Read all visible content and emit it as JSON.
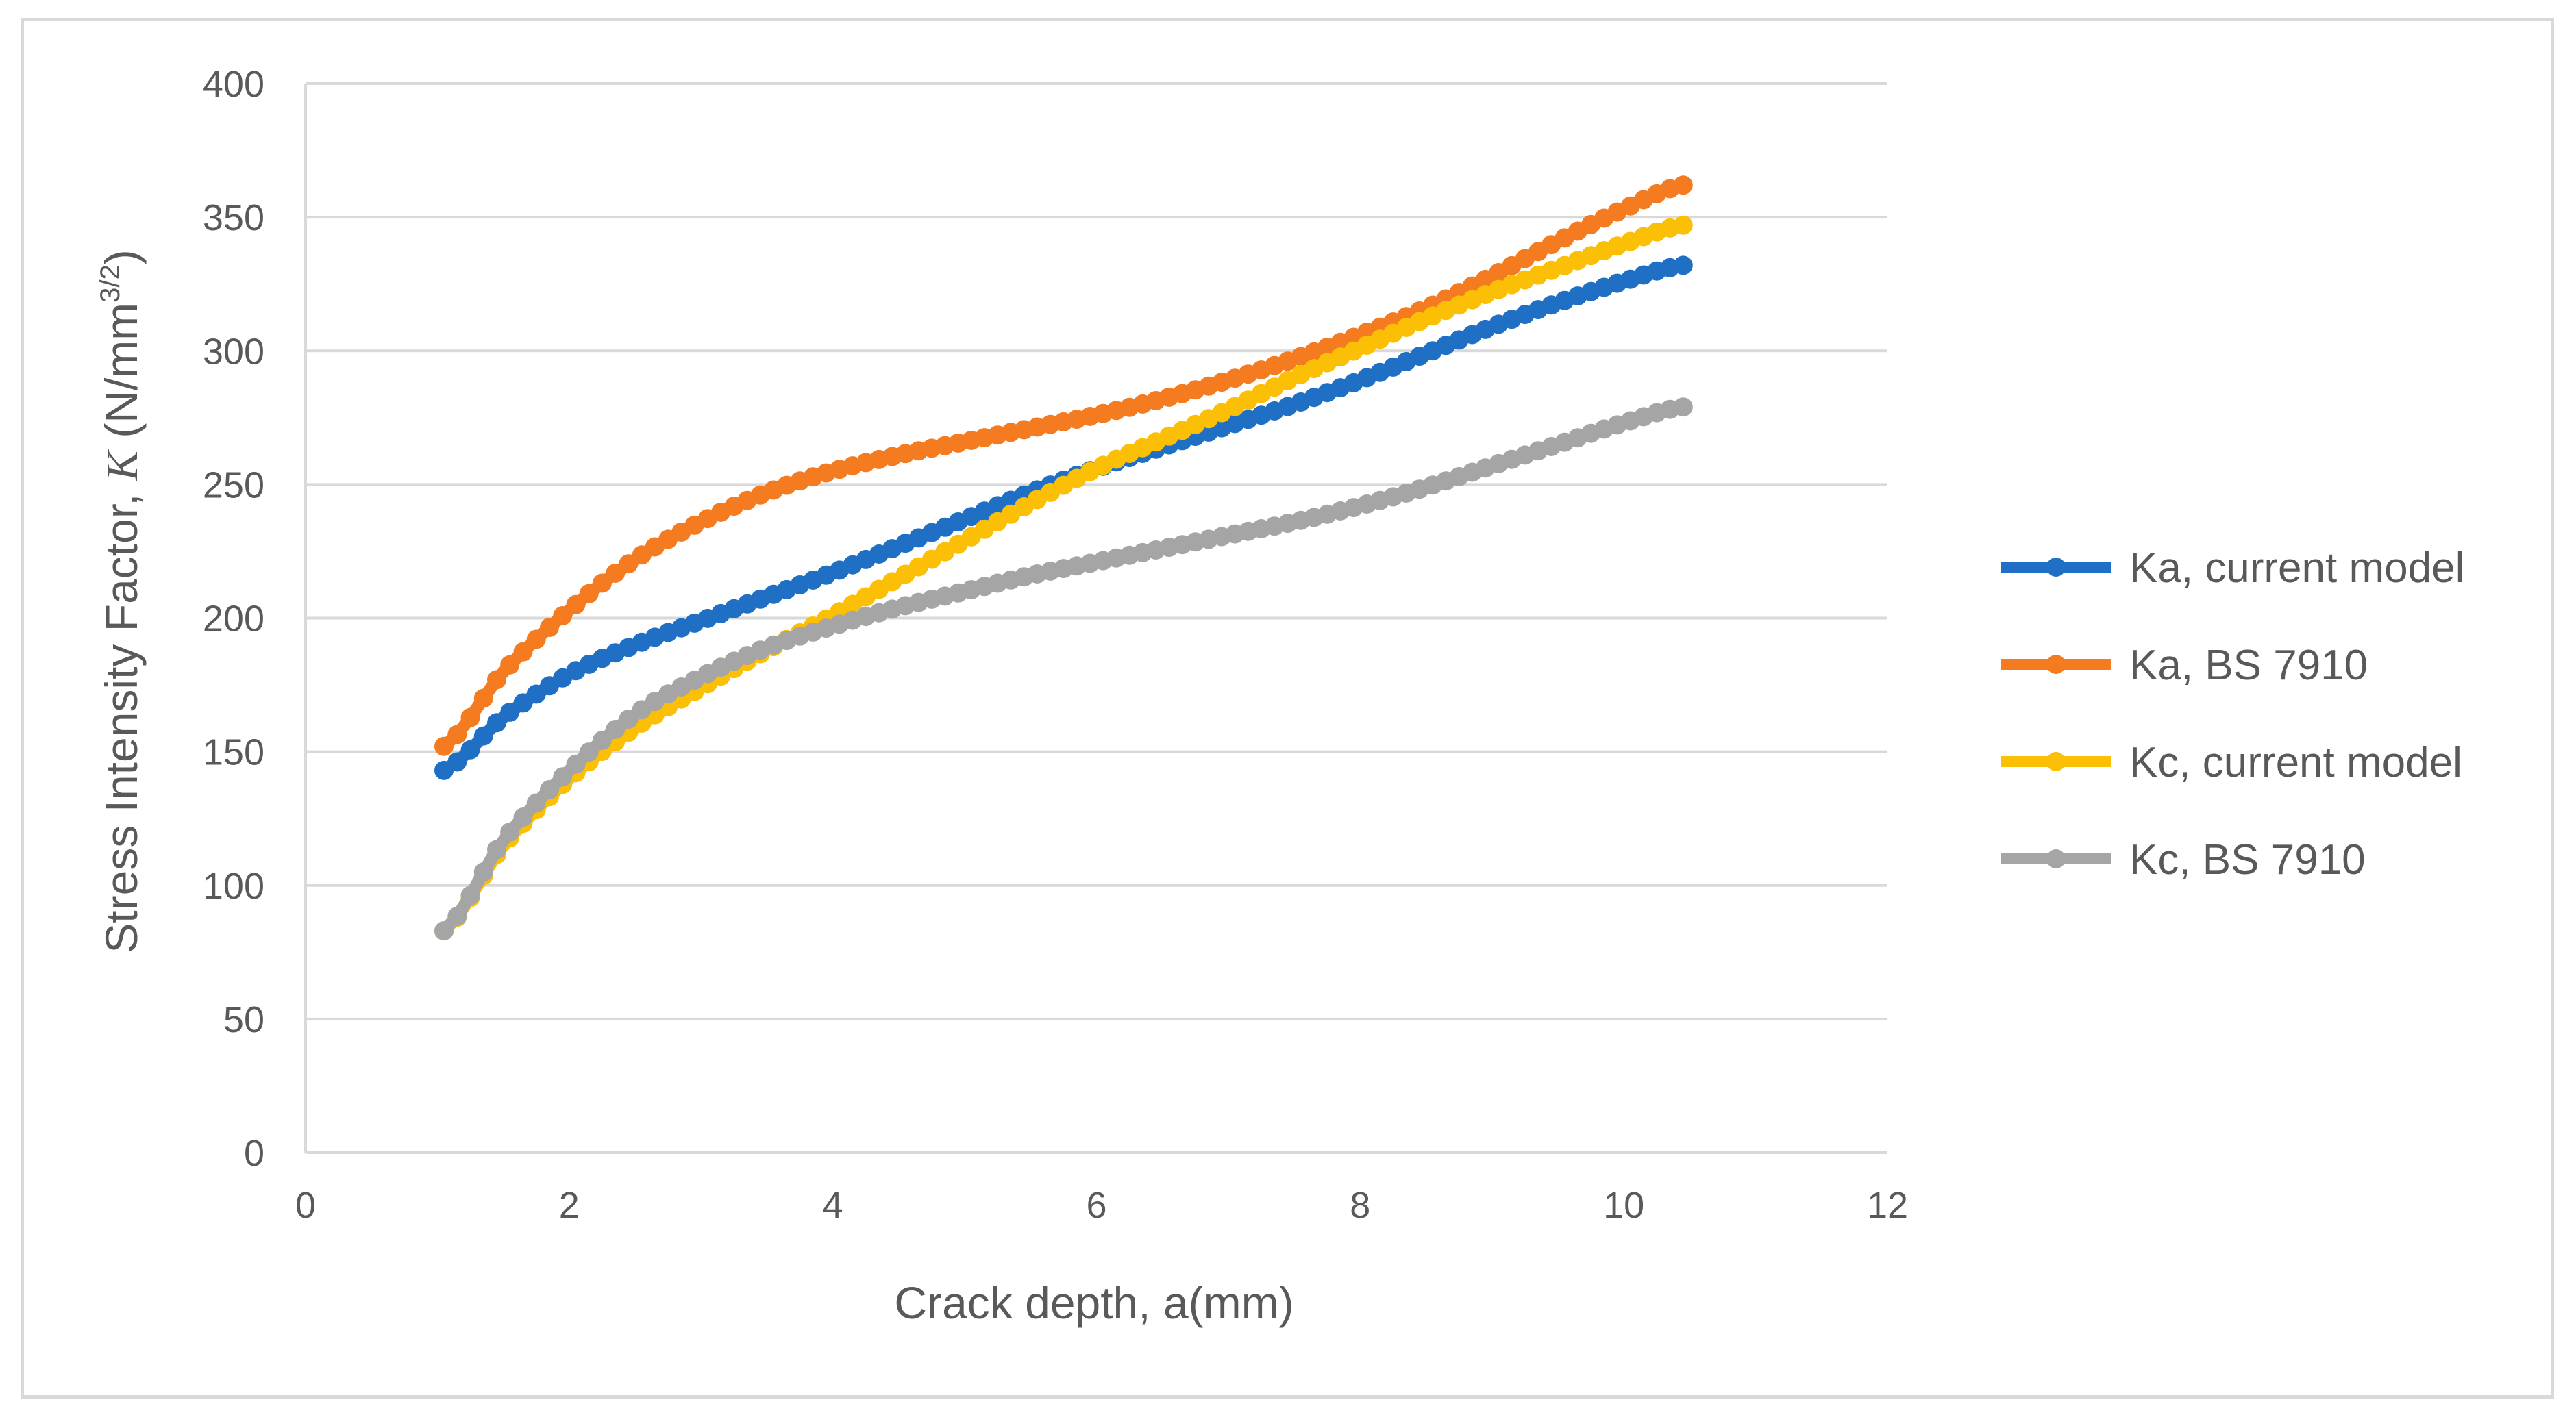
{
  "chart_data": {
    "type": "line",
    "title": "",
    "xlabel": "Crack depth, a(mm)",
    "ylabel": {
      "prefix": "Stress Intensity Factor, ",
      "symbol": "K",
      "unit_open": " (N/mm",
      "exponent": "3/2",
      "unit_close": ")"
    },
    "xlim": [
      0,
      12
    ],
    "ylim": [
      0,
      400
    ],
    "xticks": [
      0,
      2,
      4,
      6,
      8,
      10,
      12
    ],
    "yticks": [
      0,
      50,
      100,
      150,
      200,
      250,
      300,
      350,
      400
    ],
    "grid": "horizontal",
    "legend_position": "right",
    "x": [
      1.05,
      1.5,
      2.0,
      2.5,
      3.0,
      3.5,
      4.0,
      4.5,
      5.0,
      5.5,
      6.0,
      6.5,
      7.0,
      7.5,
      8.0,
      8.5,
      9.0,
      9.5,
      10.0,
      10.45
    ],
    "series": [
      {
        "name": "Ka, current model",
        "color": "#1f6fc5",
        "values": [
          143,
          163,
          179,
          190,
          199,
          208,
          217,
          227,
          237,
          247,
          256,
          264,
          272,
          280,
          289,
          299,
          309,
          318,
          326,
          332
        ]
      },
      {
        "name": "Ka, BS 7910",
        "color": "#f47b20",
        "values": [
          152,
          180,
          203,
          222,
          236,
          247,
          255,
          261,
          266,
          271,
          276,
          282,
          289,
          297,
          306,
          316,
          328,
          341,
          353,
          362
        ]
      },
      {
        "name": "Kc, current model",
        "color": "#fbbf05",
        "values": [
          83,
          115,
          140,
          159,
          174,
          188,
          201,
          215,
          229,
          243,
          256,
          267,
          278,
          290,
          301,
          312,
          322,
          331,
          340,
          347
        ]
      },
      {
        "name": "Kc, BS 7910",
        "color": "#a5a5a5",
        "values": [
          83,
          117,
          143,
          164,
          178,
          189,
          197,
          204,
          210,
          216,
          221,
          226,
          231,
          236,
          242,
          249,
          257,
          265,
          273,
          279
        ]
      }
    ]
  }
}
